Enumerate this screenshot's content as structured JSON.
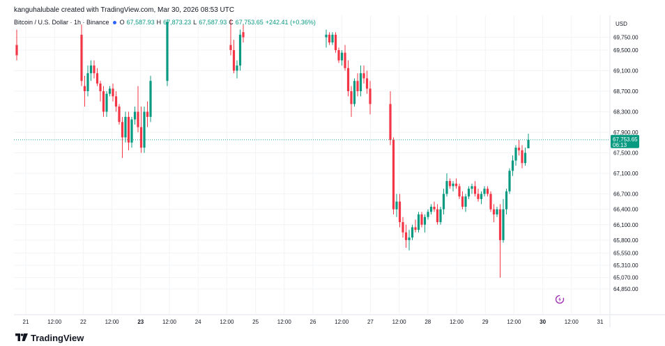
{
  "header": {
    "text": "kanguhalubale created with TradingView.com, Mar 30, 2026 08:53 UTC"
  },
  "legend": {
    "symbol": "Bitcoin / U.S. Dollar · 1h · Binance",
    "open_label": "O",
    "open": "67,587.93",
    "high_label": "H",
    "high": "67,873.23",
    "low_label": "L",
    "low": "67,587.93",
    "close_label": "C",
    "close": "67,753.65",
    "change": "+242.41 (+0.36%)"
  },
  "footer": {
    "brand": "TradingView"
  },
  "colors": {
    "up": "#089981",
    "down": "#f23645",
    "price_tag": "#089981",
    "grid": "#f2f3f5",
    "axis_text": "#131722"
  },
  "icons": {
    "footer_logo": "tradingview-logo-icon",
    "reload": "lightning-refresh-icon"
  },
  "chart_data": {
    "type": "candlestick",
    "title": "Bitcoin / U.S. Dollar · 1h · Binance",
    "currency_label": "USD",
    "y_ticks": [
      69750,
      69500,
      69100,
      68700,
      68300,
      67900,
      67500,
      67100,
      66700,
      66400,
      66100,
      65800,
      65550,
      65310,
      65070,
      64850
    ],
    "y_tick_labels": [
      "69,750.00",
      "69,500.00",
      "69,100.00",
      "68,700.00",
      "68,300.00",
      "67,900.00",
      "67,500.00",
      "67,100.00",
      "66,700.00",
      "66,400.00",
      "66,100.00",
      "65,800.00",
      "65,550.00",
      "65,310.00",
      "65,070.00",
      "64,850.00"
    ],
    "x_tick_labels": [
      "21",
      "12:00",
      "22",
      "12:00",
      "23",
      "12:00",
      "24",
      "12:00",
      "25",
      "12:00",
      "26",
      "12:00",
      "27",
      "12:00",
      "28",
      "12:00",
      "29",
      "12:00",
      "30",
      "12:00",
      "31"
    ],
    "x_tick_bold": [
      false,
      false,
      false,
      false,
      true,
      false,
      false,
      false,
      false,
      false,
      false,
      false,
      false,
      false,
      false,
      false,
      false,
      false,
      true,
      false,
      false
    ],
    "last_price": {
      "value": 67753.65,
      "label": "67,753.65",
      "countdown": "06:13"
    },
    "candles": [
      {
        "o": 69600,
        "h": 69900,
        "l": 69300,
        "c": 69400
      },
      {
        "o": 69800,
        "h": 70000,
        "l": 68800,
        "c": 68900
      },
      {
        "o": 68800,
        "h": 69000,
        "l": 68400,
        "c": 68700
      },
      {
        "o": 68700,
        "h": 69200,
        "l": 68600,
        "c": 69050
      },
      {
        "o": 69050,
        "h": 69300,
        "l": 68900,
        "c": 69200
      },
      {
        "o": 69200,
        "h": 69300,
        "l": 68950,
        "c": 69050
      },
      {
        "o": 69050,
        "h": 69150,
        "l": 68800,
        "c": 68850
      },
      {
        "o": 68850,
        "h": 68900,
        "l": 68500,
        "c": 68700
      },
      {
        "o": 68700,
        "h": 68800,
        "l": 68200,
        "c": 68300
      },
      {
        "o": 68300,
        "h": 68700,
        "l": 68200,
        "c": 68650
      },
      {
        "o": 68650,
        "h": 68800,
        "l": 68600,
        "c": 68750
      },
      {
        "o": 68750,
        "h": 68850,
        "l": 68500,
        "c": 68600
      },
      {
        "o": 68600,
        "h": 68700,
        "l": 68300,
        "c": 68400
      },
      {
        "o": 68400,
        "h": 68450,
        "l": 68050,
        "c": 68100
      },
      {
        "o": 68100,
        "h": 68200,
        "l": 67400,
        "c": 67800
      },
      {
        "o": 67800,
        "h": 68300,
        "l": 67700,
        "c": 68200
      },
      {
        "o": 68200,
        "h": 68300,
        "l": 67550,
        "c": 67700
      },
      {
        "o": 67700,
        "h": 68200,
        "l": 67600,
        "c": 68150
      },
      {
        "o": 68150,
        "h": 68400,
        "l": 68050,
        "c": 68300
      },
      {
        "o": 68300,
        "h": 68800,
        "l": 67900,
        "c": 68000
      },
      {
        "o": 68000,
        "h": 68400,
        "l": 67500,
        "c": 67600
      },
      {
        "o": 67600,
        "h": 68400,
        "l": 67500,
        "c": 68300
      },
      {
        "o": 68300,
        "h": 68500,
        "l": 68000,
        "c": 68200
      },
      {
        "o": 68200,
        "h": 69000,
        "l": 68100,
        "c": 68900
      },
      {
        "o": 68900,
        "h": 70100,
        "l": 68800,
        "c": 70050
      },
      {
        "o": 69600,
        "h": 70100,
        "l": 69400,
        "c": 69500
      },
      {
        "o": 69500,
        "h": 69700,
        "l": 69050,
        "c": 69100
      },
      {
        "o": 69100,
        "h": 69300,
        "l": 68950,
        "c": 69200
      },
      {
        "o": 69200,
        "h": 69900,
        "l": 69100,
        "c": 69800
      },
      {
        "o": 69850,
        "h": 70000,
        "l": 69650,
        "c": 69750
      },
      {
        "o": 69750,
        "h": 69900,
        "l": 69550,
        "c": 69800
      },
      {
        "o": 69800,
        "h": 69850,
        "l": 69600,
        "c": 69650
      },
      {
        "o": 69650,
        "h": 69850,
        "l": 69600,
        "c": 69800
      },
      {
        "o": 69800,
        "h": 69850,
        "l": 69450,
        "c": 69500
      },
      {
        "o": 69500,
        "h": 69550,
        "l": 69250,
        "c": 69300
      },
      {
        "o": 69300,
        "h": 69500,
        "l": 69200,
        "c": 69450
      },
      {
        "o": 69450,
        "h": 69600,
        "l": 69100,
        "c": 69150
      },
      {
        "o": 69150,
        "h": 69300,
        "l": 68600,
        "c": 68700
      },
      {
        "o": 68700,
        "h": 68800,
        "l": 68200,
        "c": 68450
      },
      {
        "o": 68450,
        "h": 68950,
        "l": 68400,
        "c": 68900
      },
      {
        "o": 68900,
        "h": 69050,
        "l": 68600,
        "c": 68700
      },
      {
        "o": 68700,
        "h": 69200,
        "l": 68600,
        "c": 69050
      },
      {
        "o": 69050,
        "h": 69200,
        "l": 68850,
        "c": 68950
      },
      {
        "o": 68950,
        "h": 69100,
        "l": 68650,
        "c": 68750
      },
      {
        "o": 68750,
        "h": 68900,
        "l": 68250,
        "c": 68450
      },
      {
        "o": 68450,
        "h": 68700,
        "l": 67650,
        "c": 67750
      },
      {
        "o": 67750,
        "h": 67800,
        "l": 66300,
        "c": 66400
      },
      {
        "o": 66400,
        "h": 66700,
        "l": 66250,
        "c": 66550
      },
      {
        "o": 66550,
        "h": 66700,
        "l": 66050,
        "c": 66150
      },
      {
        "o": 66150,
        "h": 66250,
        "l": 65850,
        "c": 65950
      },
      {
        "o": 65950,
        "h": 66100,
        "l": 65650,
        "c": 65800
      },
      {
        "o": 65800,
        "h": 66000,
        "l": 65600,
        "c": 65850
      },
      {
        "o": 65850,
        "h": 66100,
        "l": 65800,
        "c": 66050
      },
      {
        "o": 66050,
        "h": 66200,
        "l": 65950,
        "c": 66000
      },
      {
        "o": 66000,
        "h": 66350,
        "l": 65950,
        "c": 66300
      },
      {
        "o": 66300,
        "h": 66350,
        "l": 66050,
        "c": 66100
      },
      {
        "o": 66100,
        "h": 66300,
        "l": 65950,
        "c": 66250
      },
      {
        "o": 66250,
        "h": 66400,
        "l": 66200,
        "c": 66350
      },
      {
        "o": 66350,
        "h": 66500,
        "l": 66300,
        "c": 66450
      },
      {
        "o": 66450,
        "h": 66550,
        "l": 66350,
        "c": 66400
      },
      {
        "o": 66400,
        "h": 66500,
        "l": 66100,
        "c": 66150
      },
      {
        "o": 66150,
        "h": 66450,
        "l": 66100,
        "c": 66400
      },
      {
        "o": 66400,
        "h": 66800,
        "l": 66300,
        "c": 66700
      },
      {
        "o": 66700,
        "h": 67100,
        "l": 66650,
        "c": 66950
      },
      {
        "o": 66950,
        "h": 67000,
        "l": 66800,
        "c": 66850
      },
      {
        "o": 66850,
        "h": 66950,
        "l": 66750,
        "c": 66900
      },
      {
        "o": 66900,
        "h": 67000,
        "l": 66800,
        "c": 66850
      },
      {
        "o": 66850,
        "h": 66900,
        "l": 66600,
        "c": 66650
      },
      {
        "o": 66650,
        "h": 66750,
        "l": 66400,
        "c": 66450
      },
      {
        "o": 66450,
        "h": 66700,
        "l": 66350,
        "c": 66650
      },
      {
        "o": 66650,
        "h": 66850,
        "l": 66600,
        "c": 66800
      },
      {
        "o": 66800,
        "h": 66900,
        "l": 66700,
        "c": 66850
      },
      {
        "o": 66850,
        "h": 66950,
        "l": 66650,
        "c": 66700
      },
      {
        "o": 66700,
        "h": 66800,
        "l": 66550,
        "c": 66600
      },
      {
        "o": 66600,
        "h": 66750,
        "l": 66500,
        "c": 66700
      },
      {
        "o": 66700,
        "h": 66850,
        "l": 66650,
        "c": 66800
      },
      {
        "o": 66800,
        "h": 66850,
        "l": 66650,
        "c": 66700
      },
      {
        "o": 66700,
        "h": 66750,
        "l": 66350,
        "c": 66400
      },
      {
        "o": 66400,
        "h": 66500,
        "l": 66150,
        "c": 66300
      },
      {
        "o": 66300,
        "h": 66450,
        "l": 66250,
        "c": 66400
      },
      {
        "o": 66400,
        "h": 66500,
        "l": 65070,
        "c": 65800
      },
      {
        "o": 65800,
        "h": 66600,
        "l": 65750,
        "c": 66400
      },
      {
        "o": 66400,
        "h": 66800,
        "l": 66300,
        "c": 66750
      },
      {
        "o": 66750,
        "h": 67200,
        "l": 66700,
        "c": 67150
      },
      {
        "o": 67150,
        "h": 67450,
        "l": 67050,
        "c": 67350
      },
      {
        "o": 67350,
        "h": 67650,
        "l": 67250,
        "c": 67600
      },
      {
        "o": 67600,
        "h": 67750,
        "l": 67450,
        "c": 67550
      },
      {
        "o": 67550,
        "h": 67650,
        "l": 67200,
        "c": 67300
      },
      {
        "o": 67300,
        "h": 67600,
        "l": 67250,
        "c": 67500
      },
      {
        "o": 67587.93,
        "h": 67873.23,
        "l": 67587.93,
        "c": 67753.65
      }
    ]
  }
}
